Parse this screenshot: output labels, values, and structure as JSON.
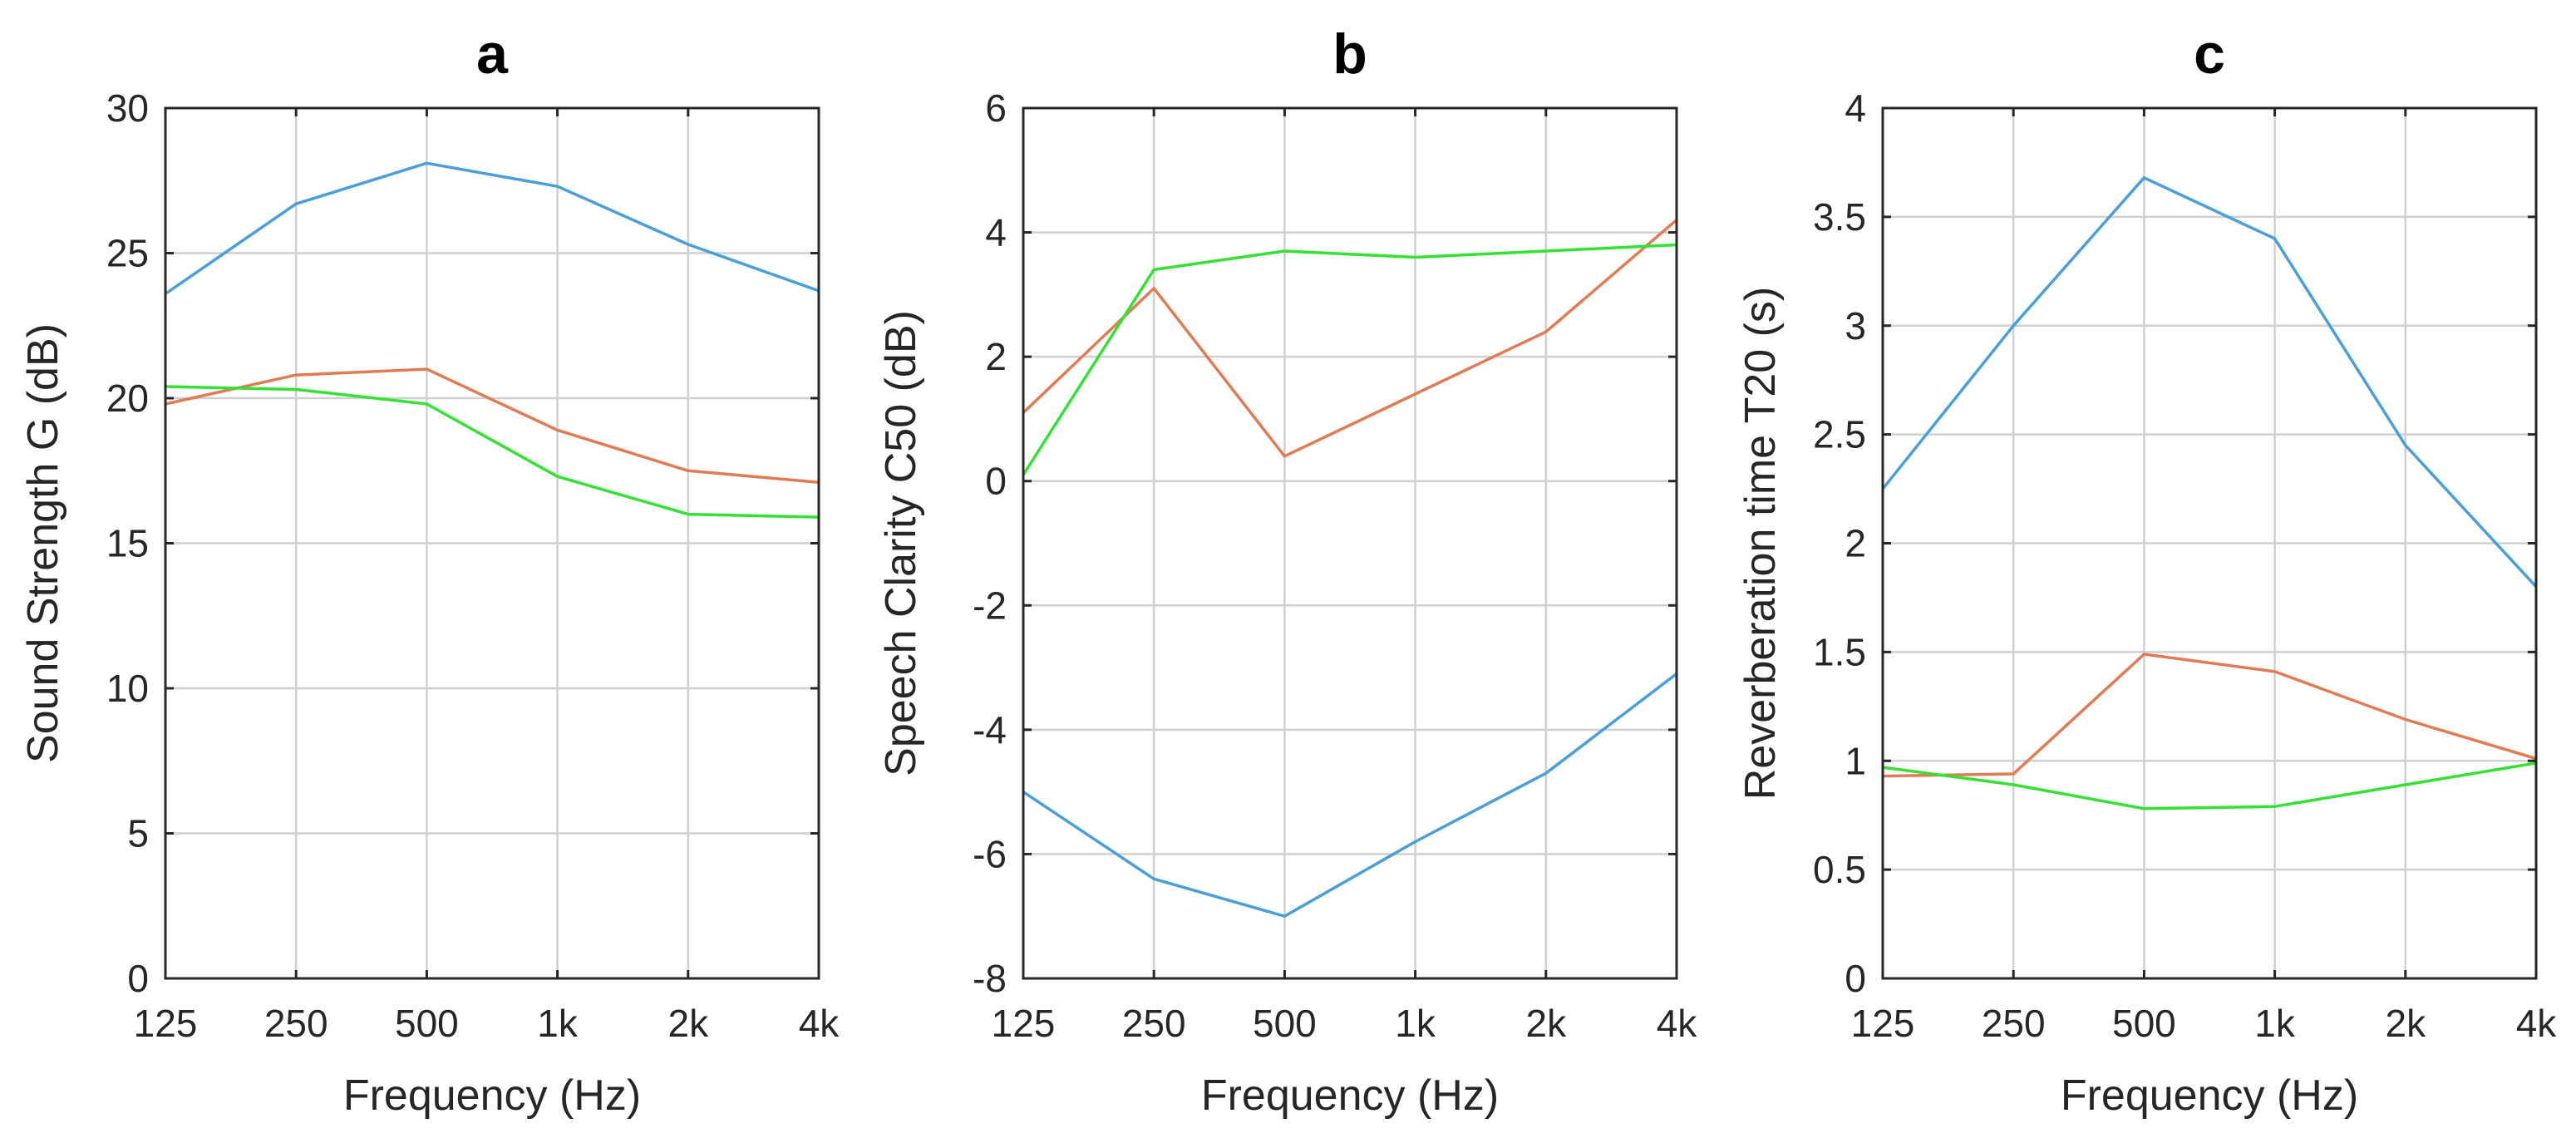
{
  "chart_data": [
    {
      "type": "line",
      "title": "a",
      "xlabel": "Frequency (Hz)",
      "ylabel": "Sound Strength G (dB)",
      "categories": [
        "125",
        "250",
        "500",
        "1k",
        "2k",
        "4k"
      ],
      "ylim": [
        0,
        30
      ],
      "yticks": [
        0,
        5,
        10,
        15,
        20,
        25,
        30
      ],
      "ytick_labels": [
        "0",
        "5",
        "10",
        "15",
        "20",
        "25",
        "30"
      ],
      "grid": true,
      "series": [
        {
          "name": "blue",
          "color": "#4a9fd8",
          "values": [
            23.6,
            26.7,
            28.1,
            27.3,
            25.3,
            23.7
          ]
        },
        {
          "name": "orange",
          "color": "#e07b54",
          "values": [
            19.8,
            20.8,
            21.0,
            18.9,
            17.5,
            17.1
          ]
        },
        {
          "name": "green",
          "color": "#33e233",
          "values": [
            20.4,
            20.3,
            19.8,
            17.3,
            16.0,
            15.9
          ]
        }
      ]
    },
    {
      "type": "line",
      "title": "b",
      "xlabel": "Frequency (Hz)",
      "ylabel": "Speech Clarity C50 (dB)",
      "categories": [
        "125",
        "250",
        "500",
        "1k",
        "2k",
        "4k"
      ],
      "ylim": [
        -8,
        6
      ],
      "yticks": [
        -8,
        -6,
        -4,
        -2,
        0,
        2,
        4,
        6
      ],
      "ytick_labels": [
        "-8",
        "-6",
        "-4",
        "-2",
        "0",
        "2",
        "4",
        "6"
      ],
      "grid": true,
      "series": [
        {
          "name": "blue",
          "color": "#4a9fd8",
          "values": [
            -5.0,
            -6.4,
            -7.0,
            -5.8,
            -4.7,
            -3.1
          ]
        },
        {
          "name": "orange",
          "color": "#e07b54",
          "values": [
            1.1,
            3.1,
            0.4,
            1.4,
            2.4,
            4.2
          ]
        },
        {
          "name": "green",
          "color": "#33e233",
          "values": [
            0.1,
            3.4,
            3.7,
            3.6,
            3.7,
            3.8
          ]
        }
      ]
    },
    {
      "type": "line",
      "title": "c",
      "xlabel": "Frequency (Hz)",
      "ylabel": "Reverberation time T20 (s)",
      "categories": [
        "125",
        "250",
        "500",
        "1k",
        "2k",
        "4k"
      ],
      "ylim": [
        0,
        4
      ],
      "yticks": [
        0,
        0.5,
        1,
        1.5,
        2,
        2.5,
        3,
        3.5,
        4
      ],
      "ytick_labels": [
        "0",
        "0.5",
        "1",
        "1.5",
        "2",
        "2.5",
        "3",
        "3.5",
        "4"
      ],
      "grid": true,
      "series": [
        {
          "name": "blue",
          "color": "#4a9fd8",
          "values": [
            2.25,
            3.0,
            3.68,
            3.4,
            2.45,
            1.8
          ]
        },
        {
          "name": "orange",
          "color": "#e07b54",
          "values": [
            0.93,
            0.94,
            1.49,
            1.41,
            1.19,
            1.01
          ]
        },
        {
          "name": "green",
          "color": "#33e233",
          "values": [
            0.97,
            0.89,
            0.78,
            0.79,
            0.89,
            0.99
          ]
        }
      ]
    }
  ]
}
